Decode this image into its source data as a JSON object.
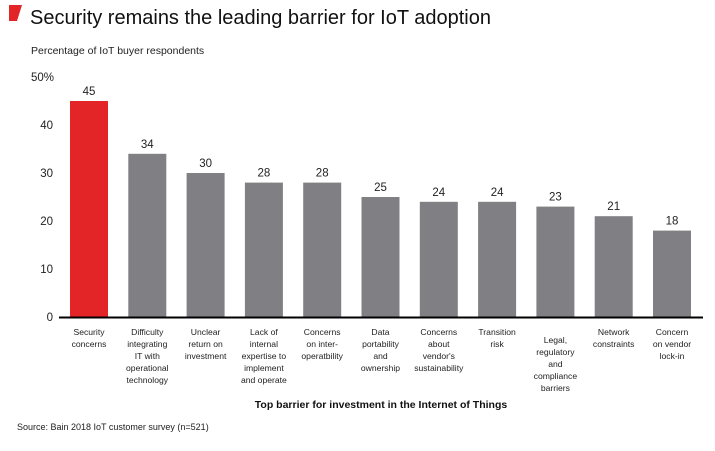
{
  "chart_data": {
    "type": "bar",
    "title": "Security remains the leading barrier for IoT adoption",
    "subtitle": "Percentage of IoT buyer respondents",
    "xlabel": "Top barrier for investment in the Internet of Things",
    "ylabel": "",
    "ylim": [
      0,
      50
    ],
    "yticks": [
      "0",
      "10",
      "20",
      "30",
      "40",
      "50%"
    ],
    "grid": false,
    "categories": [
      [
        "Security",
        "concerns"
      ],
      [
        "Difficulty",
        "integrating",
        "IT with",
        "operational",
        "technology"
      ],
      [
        "Unclear",
        "return on",
        "investment"
      ],
      [
        "Lack of",
        "internal",
        "expertise to",
        "implement",
        "and operate"
      ],
      [
        "Concerns",
        "on inter-",
        "operatbility"
      ],
      [
        "Data",
        "portability",
        "and",
        "ownership"
      ],
      [
        "Concerns",
        "about",
        "vendor's",
        "sustainability"
      ],
      [
        "Transition",
        "risk"
      ],
      [
        "Legal,",
        "regulatory",
        "and",
        "compliance",
        "barriers"
      ],
      [
        "Network",
        "constraints"
      ],
      [
        "Concern",
        "on vendor",
        "lock-in"
      ]
    ],
    "values": [
      45,
      34,
      30,
      28,
      28,
      25,
      24,
      24,
      23,
      21,
      18
    ],
    "highlight_index": 0,
    "colors": {
      "highlight": "#e42527",
      "bar": "#807f83",
      "axis": "#000000",
      "title_marker": "#e42527"
    },
    "source": "Source: Bain 2018 IoT customer survey (n=521)"
  }
}
